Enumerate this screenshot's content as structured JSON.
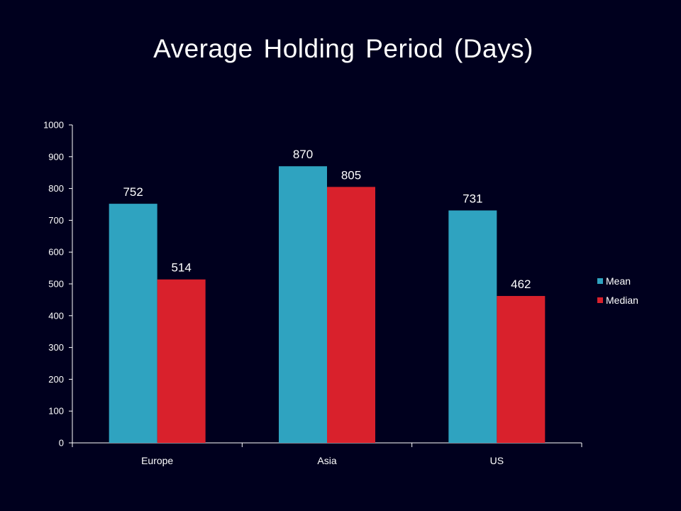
{
  "chart_data": {
    "type": "bar",
    "title": "Average Holding Period (Days)",
    "categories": [
      "Europe",
      "Asia",
      "US"
    ],
    "series": [
      {
        "name": "Mean",
        "values": [
          752,
          870,
          731
        ],
        "color": "#2fa3c0"
      },
      {
        "name": "Median",
        "values": [
          514,
          805,
          462
        ],
        "color": "#d9212c"
      }
    ],
    "ylim": [
      0,
      1000
    ],
    "yticks": [
      0,
      100,
      200,
      300,
      400,
      500,
      600,
      700,
      800,
      900,
      1000
    ],
    "xlabel": "",
    "ylabel": "",
    "grid": false,
    "legend": "right",
    "data_labels": true,
    "axis_color": "#ffffff"
  }
}
